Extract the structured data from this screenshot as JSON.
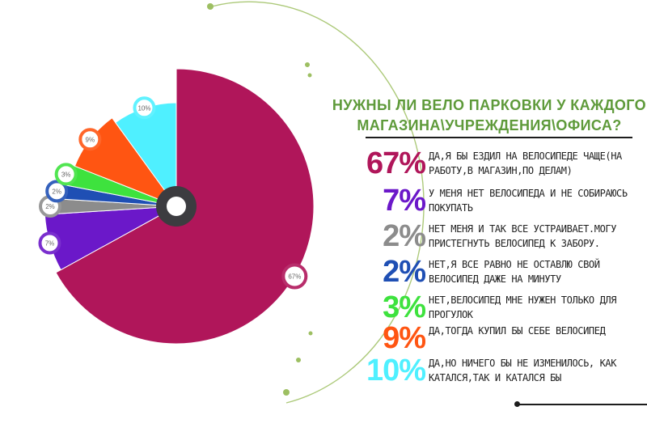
{
  "title": "НУЖНЫ ЛИ ВЕЛО ПАРКОВКИ У КАЖДОГО МАГАЗИНА\\УЧРЕЖДЕНИЯ\\ОФИСА?",
  "colors": {
    "title": "#5e9a3a",
    "accent_line": "#9dbf62",
    "hub": "#3c3c40"
  },
  "chart_data": {
    "type": "pie",
    "slices": [
      {
        "value": 67,
        "label": "67%",
        "color": "#b0165a",
        "legend_text": "Да,я бы ездил на велосипеде чаще(на работу,в магазин,по делам)"
      },
      {
        "value": 7,
        "label": "7%",
        "color": "#6b18c9",
        "legend_text": "У меня нет велосипеда и не собираюсь покупать"
      },
      {
        "value": 2,
        "label": "2%",
        "color": "#8c8c8c",
        "legend_text": "Нет меня и так все устраивает.Могу пристегнуть велосипед к забору."
      },
      {
        "value": 2,
        "label": "2%",
        "color": "#1f4fb4",
        "legend_text": "Нет,я все равно не оставлю свой велосипед даже на минуту"
      },
      {
        "value": 3,
        "label": "3%",
        "color": "#3ee23e",
        "legend_text": "Нет,велосипед мне нужен только для прогулок"
      },
      {
        "value": 9,
        "label": "9%",
        "color": "#ff5512",
        "legend_text": "Да,тогда купил бы себе велосипед"
      },
      {
        "value": 10,
        "label": "10%",
        "color": "#4ff0ff",
        "legend_text": "Да,но ничего бы не изменилось, как катался,так и катался бы"
      }
    ]
  }
}
